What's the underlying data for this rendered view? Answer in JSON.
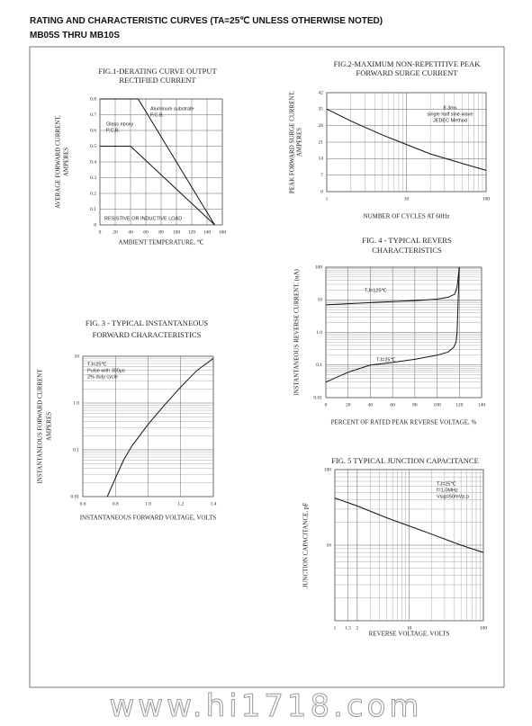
{
  "header": {
    "title": "RATING AND CHARACTERISTIC CURVES (TA=25℃ UNLESS OTHERWISE NOTED)",
    "subtitle": "MB05S THRU MB10S"
  },
  "chart_data": [
    {
      "type": "line",
      "title": [
        "FIG.1-DERATING CURVE OUTPUT",
        "RECTIFIED CURRENT"
      ],
      "x_label": "AMBIENT TEMPERATURE, ℃",
      "y_label": [
        "AVERAGE FORWARD CURRENT,",
        "AMPERES"
      ],
      "xlim": [
        0,
        160
      ],
      "xticks": [
        0,
        20,
        40,
        60,
        80,
        100,
        120,
        140,
        160
      ],
      "ylim": [
        0,
        0.8
      ],
      "yticks": [
        0,
        0.1,
        0.2,
        0.3,
        0.4,
        0.5,
        0.6,
        0.7,
        0.8
      ],
      "grid": true,
      "series": [
        {
          "color": "#111",
          "x": [
            0,
            50,
            150
          ],
          "values": [
            0.8,
            0.8,
            0
          ]
        },
        {
          "color": "#111",
          "x": [
            0,
            40,
            150
          ],
          "values": [
            0.5,
            0.5,
            0
          ]
        }
      ],
      "annotations": [
        "Aluminum substrate",
        "P.C.B.",
        "Glass epoxy",
        "P.C.B.",
        "RESISTIVE OR INDUCTIVE LOAD"
      ]
    },
    {
      "type": "line",
      "title": [
        "FIG.2-MAXIMUM NON-REPETITIVE PEAK",
        "FORWARD SURGE CURRENT"
      ],
      "x_label": "NUMBER OF CYCLES AT 60Hz",
      "y_label": [
        "PEAK FORWARD SURGE CURRENT,",
        "AMPERES"
      ],
      "xscale": "log",
      "xlim": [
        1,
        100
      ],
      "xticks": [
        1,
        10,
        100
      ],
      "ylim": [
        0,
        42
      ],
      "yticks": [
        0,
        7,
        14,
        21,
        28,
        35,
        42
      ],
      "grid": true,
      "series": [
        {
          "color": "#111",
          "x": [
            1,
            2,
            5,
            10,
            20,
            50,
            100
          ],
          "values": [
            35,
            30,
            24,
            20,
            16,
            12,
            9
          ]
        }
      ],
      "annotations": [
        "8.3ms",
        "single half sine-wave",
        "JEDEC Method"
      ]
    },
    {
      "type": "line",
      "title": [
        "FIG. 4 - TYPICAL REVERS",
        "CHARACTERISTICS"
      ],
      "x_label": "PERCENT OF RATED PEAK REVERSE VOLTAGE, %",
      "y_label": [
        "INSTANTANEOUS REVERSE CURRENT, (uA)"
      ],
      "xlim": [
        0,
        140
      ],
      "xticks": [
        0,
        20,
        40,
        60,
        80,
        100,
        120,
        140
      ],
      "yscale": "log",
      "ylim": [
        0.01,
        100
      ],
      "yticks": [
        0.01,
        0.1,
        {
          "value": 1,
          "label": "1.0"
        },
        10,
        100
      ],
      "grid": true,
      "series": [
        {
          "name": "TJ=125℃",
          "color": "#111",
          "x": [
            0,
            20,
            40,
            60,
            80,
            100,
            110,
            116,
            118,
            120
          ],
          "values": [
            7,
            7.6,
            8.2,
            8.8,
            9.5,
            10.5,
            12,
            15,
            25,
            100
          ]
        },
        {
          "name": "TJ=25℃",
          "color": "#111",
          "x": [
            0,
            20,
            40,
            60,
            80,
            100,
            110,
            115,
            117,
            118,
            119,
            120
          ],
          "values": [
            0.03,
            0.06,
            0.1,
            0.12,
            0.15,
            0.2,
            0.25,
            0.35,
            0.5,
            1,
            10,
            100
          ]
        }
      ]
    },
    {
      "type": "line",
      "title": [
        "FIG. 3 - TYPICAL  INSTANTANEOUS",
        "FORWARD CHARACTERISTICS"
      ],
      "x_label": "INSTANTANEOUS FORWARD VOLTAGE, VOLTS",
      "y_label": [
        "INSTANTANEOUS FORWARD CURRENT",
        "AMPERES"
      ],
      "xlim": [
        0.6,
        1.4
      ],
      "xticks": [
        0.6,
        0.8,
        {
          "value": 1,
          "label": "1.0"
        },
        1.2,
        1.4
      ],
      "yscale": "log",
      "ylim": [
        0.01,
        10
      ],
      "yticks": [
        0.01,
        0.1,
        {
          "value": 1,
          "label": "1.0"
        },
        10
      ],
      "grid": true,
      "series": [
        {
          "color": "#111",
          "x": [
            0.75,
            0.8,
            0.85,
            0.9,
            1,
            1.1,
            1.2,
            1.3,
            1.4
          ],
          "values": [
            0.01,
            0.025,
            0.06,
            0.12,
            0.35,
            0.9,
            2.2,
            5,
            9
          ]
        }
      ],
      "annotations": [
        "TJ=25℃",
        "Pulse with 300μs",
        "2% duty cycle"
      ]
    },
    {
      "type": "line",
      "title": [
        "FIG. 5 TYPICAL JUNCTION CAPACITANCE"
      ],
      "x_label": "REVERSE VOLTAGE, VOLTS",
      "y_label": [
        "JUNCTION CAPACITANCE, pF"
      ],
      "xscale": "log",
      "xlim": [
        1,
        100
      ],
      "xticks": [
        1,
        1.5,
        2,
        10,
        100
      ],
      "yscale": "log",
      "ylim": [
        1,
        100
      ],
      "yticks": [
        10,
        100
      ],
      "grid": true,
      "series": [
        {
          "color": "#111",
          "x": [
            1,
            2,
            5,
            10,
            20,
            50,
            100
          ],
          "values": [
            42,
            33,
            23,
            18,
            14,
            10,
            8
          ]
        }
      ],
      "annotations": [
        "TJ=25℃",
        "f=1.0MHz",
        "Vsig=50mVp.p"
      ]
    }
  ],
  "watermark": "www.hi1718.com"
}
